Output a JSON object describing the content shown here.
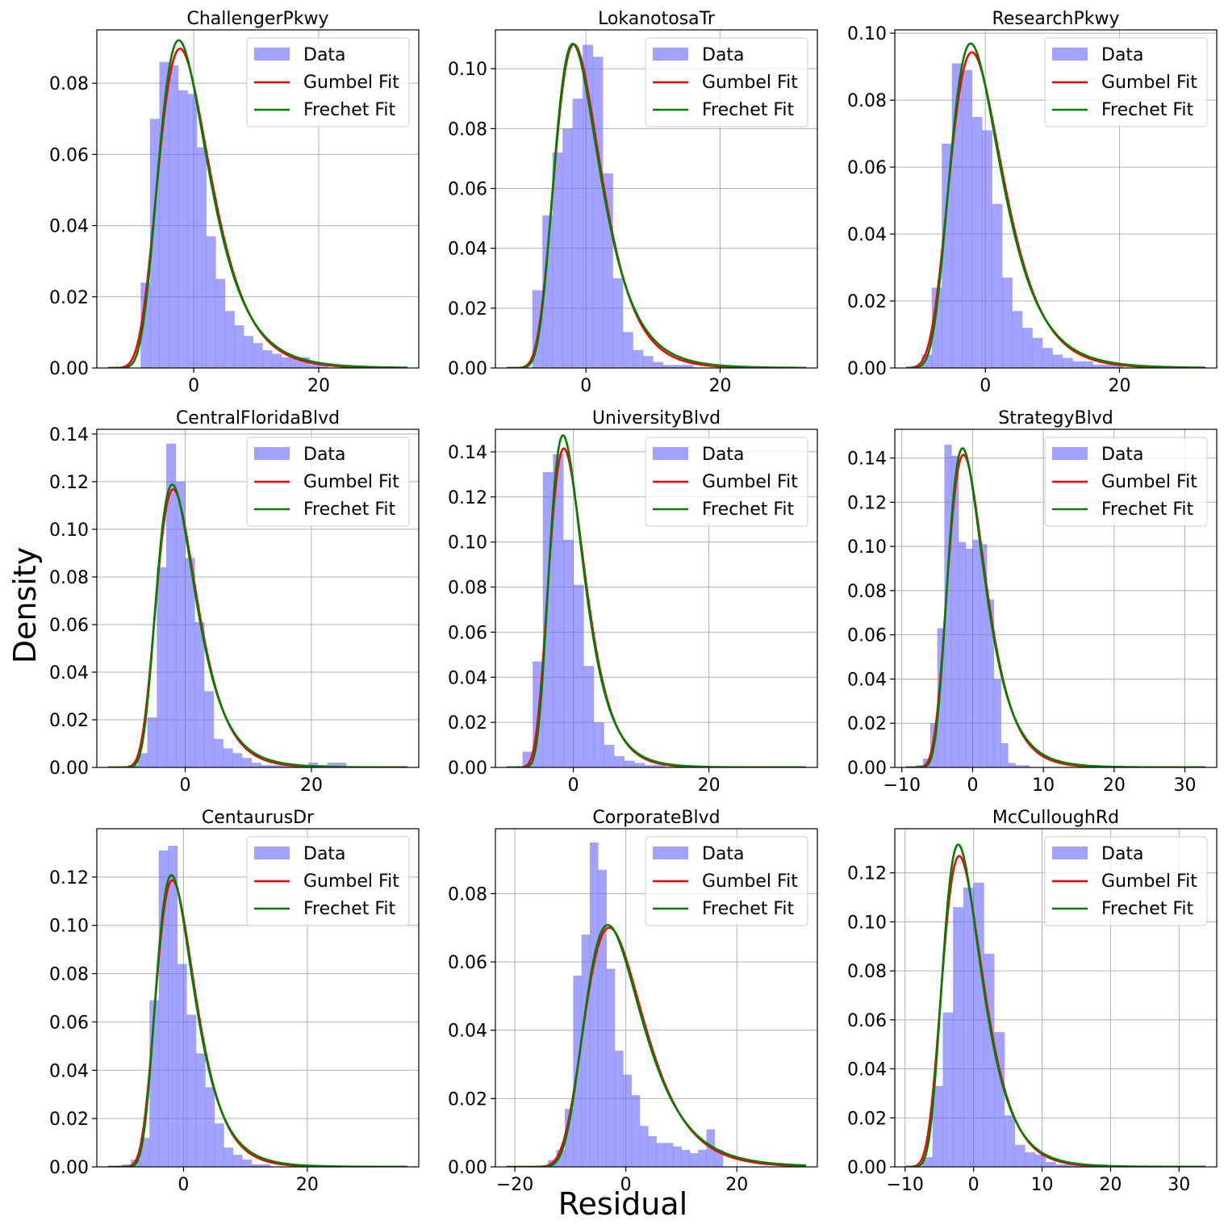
{
  "figure": {
    "ylabel": "Density",
    "xlabel": "Residual",
    "colors": {
      "data": "#6666ff",
      "gumbel": "#ff0000",
      "frechet": "#008000",
      "grid": "#b0b0b0"
    }
  },
  "chart_data": [
    {
      "type": "bar",
      "title": "ChallengerPkwy",
      "xlim": [
        -15.5,
        36
      ],
      "ylim": [
        0,
        0.095
      ],
      "xticks": [
        0,
        20
      ],
      "yticks": [
        0.0,
        0.02,
        0.04,
        0.06,
        0.08
      ],
      "ytick_decimals": 2,
      "bin_start": -8.5,
      "bin_width": 1.5,
      "values": [
        0.024,
        0.07,
        0.086,
        0.085,
        0.078,
        0.077,
        0.062,
        0.037,
        0.025,
        0.016,
        0.012,
        0.009,
        0.007,
        0.005,
        0.004,
        0.003,
        0.003,
        0.003,
        0.001,
        0.001
      ],
      "gumbel": {
        "mu": -2.2,
        "beta": 4.1,
        "xi": 0
      },
      "frechet": {
        "mu": -2.2,
        "beta": 4.0,
        "xi": 0.05
      },
      "legend": [
        "Data",
        "Gumbel Fit",
        "Frechet Fit"
      ]
    },
    {
      "type": "bar",
      "title": "LokanotosaTr",
      "xlim": [
        -13.5,
        34.5
      ],
      "ylim": [
        0,
        0.113
      ],
      "xticks": [
        0,
        20
      ],
      "yticks": [
        0.0,
        0.02,
        0.04,
        0.06,
        0.08,
        0.1
      ],
      "ytick_decimals": 2,
      "bin_start": -8,
      "bin_width": 1.5,
      "values": [
        0.026,
        0.051,
        0.072,
        0.08,
        0.09,
        0.108,
        0.104,
        0.065,
        0.03,
        0.012,
        0.006,
        0.004,
        0.002,
        0.001,
        0.001,
        0.001
      ],
      "gumbel": {
        "mu": -1.8,
        "beta": 3.4,
        "xi": 0
      },
      "frechet": {
        "mu": -1.8,
        "beta": 3.4,
        "xi": 0.05
      },
      "legend": [
        "Data",
        "Gumbel Fit",
        "Frechet Fit"
      ]
    },
    {
      "type": "bar",
      "title": "ResearchPkwy",
      "xlim": [
        -13.5,
        34.5
      ],
      "ylim": [
        0,
        0.101
      ],
      "xticks": [
        0,
        20
      ],
      "yticks": [
        0.0,
        0.02,
        0.04,
        0.06,
        0.08,
        0.1
      ],
      "ytick_decimals": 2,
      "bin_start": -9.5,
      "bin_width": 1.5,
      "values": [
        0.004,
        0.024,
        0.067,
        0.091,
        0.089,
        0.075,
        0.071,
        0.049,
        0.027,
        0.017,
        0.012,
        0.009,
        0.006,
        0.004,
        0.003,
        0.002,
        0.002,
        0.001,
        0.001,
        0.001
      ],
      "gumbel": {
        "mu": -2.0,
        "beta": 3.9,
        "xi": 0
      },
      "frechet": {
        "mu": -2.0,
        "beta": 3.8,
        "xi": 0.05
      },
      "legend": [
        "Data",
        "Gumbel Fit",
        "Frechet Fit"
      ]
    },
    {
      "type": "bar",
      "title": "CentralFloridaBlvd",
      "xlim": [
        -14,
        37
      ],
      "ylim": [
        0,
        0.142
      ],
      "xticks": [
        0,
        20
      ],
      "yticks": [
        0.0,
        0.02,
        0.04,
        0.06,
        0.08,
        0.1,
        0.12,
        0.14
      ],
      "ytick_decimals": 2,
      "bin_start": -9,
      "bin_width": 1.5,
      "values": [
        0.001,
        0.006,
        0.021,
        0.084,
        0.136,
        0.12,
        0.088,
        0.061,
        0.032,
        0.012,
        0.008,
        0.006,
        0.004,
        0.002,
        0.001,
        0.001,
        0.001,
        0.001,
        0.001,
        0.002,
        0.001,
        0.002,
        0.002
      ],
      "gumbel": {
        "mu": -1.9,
        "beta": 3.15,
        "xi": 0
      },
      "frechet": {
        "mu": -1.9,
        "beta": 3.1,
        "xi": 0.05
      },
      "legend": [
        "Data",
        "Gumbel Fit",
        "Frechet Fit"
      ]
    },
    {
      "type": "bar",
      "title": "UniversityBlvd",
      "xlim": [
        -11.5,
        36
      ],
      "ylim": [
        0,
        0.15
      ],
      "xticks": [
        0,
        20
      ],
      "yticks": [
        0.0,
        0.02,
        0.04,
        0.06,
        0.08,
        0.1,
        0.12,
        0.14
      ],
      "ytick_decimals": 2,
      "bin_start": -7.5,
      "bin_width": 1.5,
      "values": [
        0.007,
        0.047,
        0.131,
        0.139,
        0.101,
        0.081,
        0.045,
        0.02,
        0.01,
        0.005,
        0.003,
        0.002,
        0.001,
        0.001
      ],
      "gumbel": {
        "mu": -1.4,
        "beta": 2.6,
        "xi": 0
      },
      "frechet": {
        "mu": -1.4,
        "beta": 2.5,
        "xi": 0.05
      },
      "legend": [
        "Data",
        "Gumbel Fit",
        "Frechet Fit"
      ]
    },
    {
      "type": "bar",
      "title": "StrategyBlvd",
      "xlim": [
        -11,
        34.5
      ],
      "ylim": [
        0,
        0.153
      ],
      "xticks": [
        -10,
        0,
        10,
        20,
        30
      ],
      "yticks": [
        0.0,
        0.02,
        0.04,
        0.06,
        0.08,
        0.1,
        0.12,
        0.14
      ],
      "ytick_decimals": 2,
      "bin_start": -8,
      "bin_width": 1,
      "values": [
        0.001,
        0.004,
        0.02,
        0.063,
        0.146,
        0.141,
        0.102,
        0.099,
        0.103,
        0.101,
        0.076,
        0.04,
        0.011,
        0.002,
        0.001,
        0.001
      ],
      "gumbel": {
        "mu": -1.3,
        "beta": 2.6,
        "xi": 0
      },
      "frechet": {
        "mu": -1.3,
        "beta": 2.55,
        "xi": 0.05
      },
      "legend": [
        "Data",
        "Gumbel Fit",
        "Frechet Fit"
      ]
    },
    {
      "type": "bar",
      "title": "CentaurusDr",
      "xlim": [
        -14,
        38
      ],
      "ylim": [
        0,
        0.14
      ],
      "xticks": [
        0,
        20
      ],
      "yticks": [
        0.0,
        0.02,
        0.04,
        0.06,
        0.08,
        0.1,
        0.12
      ],
      "ytick_decimals": 2,
      "bin_start": -10,
      "bin_width": 1.5,
      "values": [
        0.001,
        0.003,
        0.012,
        0.069,
        0.131,
        0.133,
        0.084,
        0.063,
        0.047,
        0.033,
        0.018,
        0.008,
        0.005,
        0.003,
        0.001,
        0.001
      ],
      "gumbel": {
        "mu": -1.8,
        "beta": 3.1,
        "xi": 0
      },
      "frechet": {
        "mu": -1.8,
        "beta": 3.05,
        "xi": 0.05
      },
      "legend": [
        "Data",
        "Gumbel Fit",
        "Frechet Fit"
      ]
    },
    {
      "type": "bar",
      "title": "CorporateBlvd",
      "xlim": [
        -23.5,
        34.5
      ],
      "ylim": [
        0,
        0.099
      ],
      "xticks": [
        -20,
        0,
        20
      ],
      "yticks": [
        0.0,
        0.02,
        0.04,
        0.06,
        0.08
      ],
      "ytick_decimals": 2,
      "bin_start": -14,
      "bin_width": 1.5,
      "values": [
        0.002,
        0.005,
        0.017,
        0.056,
        0.068,
        0.095,
        0.087,
        0.058,
        0.034,
        0.027,
        0.021,
        0.012,
        0.009,
        0.007,
        0.007,
        0.006,
        0.005,
        0.004,
        0.005,
        0.011,
        0.005
      ],
      "gumbel": {
        "mu": -3.0,
        "beta": 5.25,
        "xi": 0
      },
      "frechet": {
        "mu": -3.0,
        "beta": 5.2,
        "xi": 0.05
      },
      "legend": [
        "Data",
        "Gumbel Fit",
        "Frechet Fit"
      ]
    },
    {
      "type": "bar",
      "title": "McCulloughRd",
      "xlim": [
        -11.5,
        35.5
      ],
      "ylim": [
        0,
        0.138
      ],
      "xticks": [
        -10,
        0,
        10,
        20,
        30
      ],
      "yticks": [
        0.0,
        0.02,
        0.04,
        0.06,
        0.08,
        0.1,
        0.12
      ],
      "ytick_decimals": 2,
      "bin_start": -7.5,
      "bin_width": 1.5,
      "values": [
        0.004,
        0.033,
        0.063,
        0.106,
        0.114,
        0.116,
        0.087,
        0.055,
        0.021,
        0.009,
        0.006,
        0.005,
        0.002,
        0.001,
        0.001,
        0.001,
        0.001,
        0.001
      ],
      "gumbel": {
        "mu": -2.1,
        "beta": 2.9,
        "xi": 0
      },
      "frechet": {
        "mu": -2.1,
        "beta": 2.8,
        "xi": 0.05
      },
      "legend": [
        "Data",
        "Gumbel Fit",
        "Frechet Fit"
      ]
    }
  ]
}
